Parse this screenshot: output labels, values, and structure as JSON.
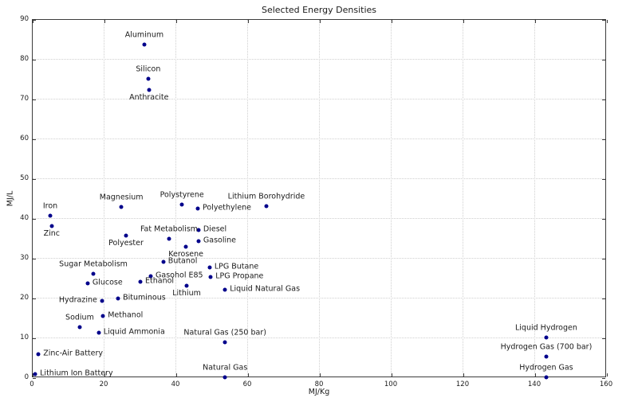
{
  "chart_data": {
    "type": "scatter",
    "title": "Selected Energy Densities",
    "xlabel": "MJ/Kg",
    "ylabel": "MJ/L",
    "xlim": [
      0,
      160
    ],
    "ylim": [
      0,
      90
    ],
    "x_ticks": [
      0,
      20,
      40,
      60,
      80,
      100,
      120,
      140,
      160
    ],
    "y_ticks": [
      0,
      10,
      20,
      30,
      40,
      50,
      60,
      70,
      80,
      90
    ],
    "grid": "dotted",
    "legend": "none",
    "marker_color": "#00008b",
    "grid_color": "#cfcfcf",
    "points": [
      {
        "label": "Aluminum",
        "x": 31.1,
        "y": 83.8,
        "label_pos": "above"
      },
      {
        "label": "Silicon",
        "x": 32.2,
        "y": 75.2,
        "label_pos": "above"
      },
      {
        "label": "Anthracite",
        "x": 32.4,
        "y": 72.4,
        "label_pos": "below"
      },
      {
        "label": "Magnesium",
        "x": 24.7,
        "y": 43.0,
        "label_pos": "above"
      },
      {
        "label": "Iron",
        "x": 4.9,
        "y": 40.8,
        "label_pos": "above"
      },
      {
        "label": "Zinc",
        "x": 5.3,
        "y": 38.2,
        "label_pos": "below"
      },
      {
        "label": "Polystyrene",
        "x": 41.6,
        "y": 43.6,
        "label_pos": "above"
      },
      {
        "label": "Polyethylene",
        "x": 46.0,
        "y": 42.6,
        "label_pos": "right"
      },
      {
        "label": "Lithium Borohydride",
        "x": 65.1,
        "y": 43.2,
        "label_pos": "above"
      },
      {
        "label": "Diesel",
        "x": 46.2,
        "y": 37.3,
        "label_pos": "right"
      },
      {
        "label": "Fat Metabolism",
        "x": 38.0,
        "y": 35.0,
        "label_pos": "above"
      },
      {
        "label": "Polyester",
        "x": 26.0,
        "y": 35.8,
        "label_pos": "below"
      },
      {
        "label": "Gasoline",
        "x": 46.2,
        "y": 34.4,
        "label_pos": "right"
      },
      {
        "label": "Kerosene",
        "x": 42.7,
        "y": 33.0,
        "label_pos": "below"
      },
      {
        "label": "Butanol",
        "x": 36.4,
        "y": 29.2,
        "label_pos": "right"
      },
      {
        "label": "LPG Butane",
        "x": 49.3,
        "y": 27.8,
        "label_pos": "right"
      },
      {
        "label": "Sugar Metabolism",
        "x": 16.9,
        "y": 26.3,
        "label_pos": "above"
      },
      {
        "label": "Gasohol E85",
        "x": 32.9,
        "y": 25.6,
        "label_pos": "right"
      },
      {
        "label": "LPG Propane",
        "x": 49.6,
        "y": 25.4,
        "label_pos": "right"
      },
      {
        "label": "Ethanol",
        "x": 30.0,
        "y": 24.2,
        "label_pos": "right"
      },
      {
        "label": "Glucose",
        "x": 15.3,
        "y": 23.8,
        "label_pos": "right"
      },
      {
        "label": "Lithium",
        "x": 42.9,
        "y": 23.2,
        "label_pos": "below"
      },
      {
        "label": "Liquid Natural Gas",
        "x": 53.6,
        "y": 22.2,
        "label_pos": "right"
      },
      {
        "label": "Bituminous",
        "x": 23.8,
        "y": 20.0,
        "label_pos": "right"
      },
      {
        "label": "Hydrazine",
        "x": 19.3,
        "y": 19.4,
        "label_pos": "left"
      },
      {
        "label": "Methanol",
        "x": 19.6,
        "y": 15.6,
        "label_pos": "right"
      },
      {
        "label": "Sodium",
        "x": 13.1,
        "y": 12.8,
        "label_pos": "above"
      },
      {
        "label": "Liquid Ammonia",
        "x": 18.4,
        "y": 11.4,
        "label_pos": "right"
      },
      {
        "label": "Liquid Hydrogen",
        "x": 143.1,
        "y": 10.3,
        "label_pos": "above"
      },
      {
        "label": "Natural Gas (250 bar)",
        "x": 53.6,
        "y": 9.0,
        "label_pos": "above"
      },
      {
        "label": "Zinc-Air Battery",
        "x": 1.6,
        "y": 6.0,
        "label_pos": "right"
      },
      {
        "label": "Hydrogen Gas (700 bar)",
        "x": 143.1,
        "y": 5.5,
        "label_pos": "above"
      },
      {
        "label": "Lithium Ion Battery",
        "x": 0.7,
        "y": 1.1,
        "label_pos": "right"
      },
      {
        "label": "Natural Gas",
        "x": 53.6,
        "y": 0.15,
        "label_pos": "above"
      },
      {
        "label": "Hydrogen Gas",
        "x": 143.1,
        "y": 0.15,
        "label_pos": "above"
      }
    ]
  }
}
